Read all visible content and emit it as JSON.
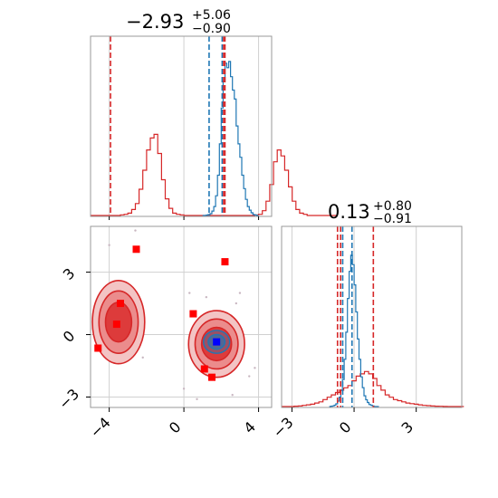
{
  "chart_data": [
    {
      "type": "histogram",
      "panel": "top-left",
      "title_value": "−2.93",
      "title_upper": "+5.06",
      "title_lower": "−0.90",
      "xlim": [
        -5,
        4.7
      ],
      "grid": true,
      "series": [
        {
          "color": "#d62728",
          "bin_start": -5,
          "bin_width": 0.2,
          "counts": [
            0,
            0,
            0,
            0,
            0,
            0,
            0,
            0,
            0.5,
            1,
            2,
            5,
            10,
            22,
            38,
            55,
            65,
            68,
            52,
            30,
            14,
            6,
            2,
            1,
            0.5,
            0,
            0,
            0,
            0,
            0,
            0,
            0,
            0,
            0,
            0,
            0,
            0,
            0,
            0,
            0,
            0,
            0,
            0,
            0,
            0.5,
            1,
            4,
            12,
            26,
            45,
            55,
            50,
            38,
            24,
            12,
            5,
            2,
            1,
            0,
            0,
            0,
            0,
            0,
            0,
            0,
            0
          ]
        },
        {
          "color": "#1f77b4",
          "bin_start": 1.0,
          "bin_width": 0.1,
          "counts": [
            0,
            0,
            0.5,
            1,
            2,
            5,
            10,
            22,
            45,
            80,
            120,
            150,
            170,
            165,
            172,
            155,
            140,
            130,
            100,
            80,
            65,
            45,
            30,
            18,
            10,
            6,
            3,
            1,
            0.5,
            0
          ]
        }
      ],
      "vlines": [
        {
          "x": -3.93,
          "color": "#d62728"
        },
        {
          "x": 1.35,
          "color": "#1f77b4"
        },
        {
          "x": 2.05,
          "color": "#1f77b4"
        },
        {
          "x": 2.13,
          "color": "#d62728"
        },
        {
          "x": 2.2,
          "color": "#d62728"
        }
      ]
    },
    {
      "type": "scatter",
      "panel": "bottom-left",
      "xlim": [
        -5,
        4.7
      ],
      "ylim": [
        -3.5,
        5.2
      ],
      "xticks": [
        "−4",
        "0",
        "4"
      ],
      "xtick_values": [
        -4,
        0,
        4
      ],
      "yticks": [
        "−3",
        "0",
        "3"
      ],
      "ytick_values": [
        -3,
        0,
        3
      ],
      "grid": true,
      "contours_red": [
        {
          "cx": -3.5,
          "cy": 0.6,
          "rx": 1.4,
          "ry": 2.0
        },
        {
          "cx": -3.5,
          "cy": 0.6,
          "rx": 1.05,
          "ry": 1.5
        },
        {
          "cx": -3.5,
          "cy": 0.6,
          "rx": 0.7,
          "ry": 0.95
        },
        {
          "cx": 1.75,
          "cy": -0.45,
          "rx": 1.5,
          "ry": 1.6
        },
        {
          "cx": 1.75,
          "cy": -0.45,
          "rx": 1.15,
          "ry": 1.2
        },
        {
          "cx": 1.75,
          "cy": -0.45,
          "rx": 0.8,
          "ry": 0.8
        }
      ],
      "contours_blue": [
        {
          "cx": 1.75,
          "cy": -0.35,
          "rx": 0.7,
          "ry": 0.55
        },
        {
          "cx": 1.75,
          "cy": -0.35,
          "rx": 0.45,
          "ry": 0.35
        }
      ],
      "markers_red": [
        {
          "x": -2.55,
          "y": 4.1
        },
        {
          "x": 2.2,
          "y": 3.5
        },
        {
          "x": -3.4,
          "y": 1.5
        },
        {
          "x": -3.6,
          "y": 0.5
        },
        {
          "x": -4.6,
          "y": -0.65
        },
        {
          "x": 0.5,
          "y": 1.0
        },
        {
          "x": 1.1,
          "y": -1.65
        },
        {
          "x": 1.5,
          "y": -2.05
        }
      ],
      "marker_blue": {
        "x": 1.75,
        "y": -0.35
      }
    },
    {
      "type": "histogram",
      "panel": "bottom-right",
      "title_value": "0.13",
      "title_upper": "+0.80",
      "title_lower": "−0.91",
      "xlim": [
        -3.5,
        5.2
      ],
      "xticks": [
        "−3",
        "0",
        "3"
      ],
      "xtick_values": [
        -3,
        0,
        3
      ],
      "grid": true,
      "series": [
        {
          "color": "#d62728",
          "bin_start": -3.5,
          "bin_width": 0.2,
          "counts": [
            0,
            0,
            0,
            0.3,
            0.5,
            1,
            1.5,
            2,
            3,
            4,
            6,
            8,
            10,
            12,
            14,
            16,
            18,
            22,
            26,
            28,
            30,
            28,
            24,
            18,
            14,
            10,
            8,
            6,
            5,
            4,
            3,
            2.5,
            2,
            1.5,
            1,
            0.8,
            0.5,
            0.3,
            0.2,
            0.1,
            0,
            0,
            0,
            0
          ]
        },
        {
          "color": "#1f77b4",
          "bin_start": -1.2,
          "bin_width": 0.08,
          "counts": [
            0,
            0.3,
            0.5,
            1,
            2,
            4,
            7,
            12,
            20,
            35,
            55,
            80,
            100,
            112,
            105,
            90,
            70,
            50,
            35,
            22,
            14,
            8,
            5,
            3,
            1.5,
            1,
            0.5,
            0,
            0,
            0
          ]
        }
      ],
      "vlines": [
        {
          "x": -0.8,
          "color": "#d62728"
        },
        {
          "x": -0.55,
          "color": "#1f77b4"
        },
        {
          "x": -0.1,
          "color": "#1f77b4"
        },
        {
          "x": 0.93,
          "color": "#d62728"
        },
        {
          "x": -0.65,
          "color": "#d62728"
        }
      ]
    }
  ]
}
